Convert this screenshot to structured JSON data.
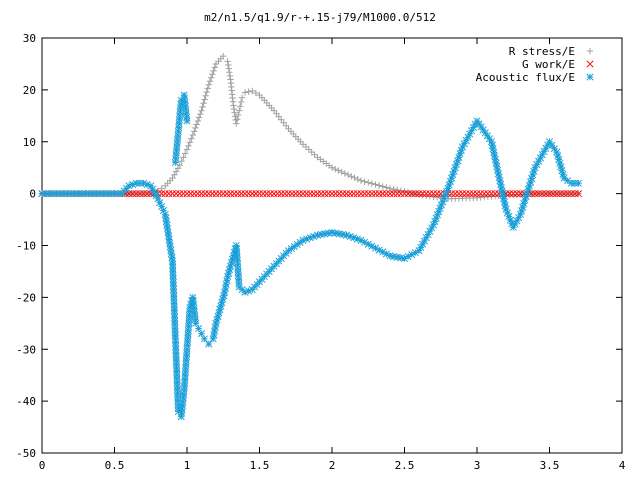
{
  "chart_data": {
    "type": "scatter",
    "title": "m2/n1.5/q1.9/r-+.15-j79/M1000.0/512",
    "xlabel": "",
    "ylabel": "",
    "xlim": [
      0,
      4
    ],
    "ylim": [
      -50,
      30
    ],
    "x_ticks": [
      "0",
      "0.5",
      "1",
      "1.5",
      "2",
      "2.5",
      "3",
      "3.5",
      "4"
    ],
    "y_ticks": [
      "30",
      "20",
      "10",
      "0",
      "-10",
      "-20",
      "-30",
      "-40",
      "-50"
    ],
    "grid": false,
    "legend_position": "top-right",
    "series": [
      {
        "name": "R stress/E",
        "marker": "+",
        "color": "#a0a0a0",
        "x": [
          0.0,
          0.5,
          0.6,
          0.7,
          0.75,
          0.8,
          0.85,
          0.9,
          0.95,
          1.0,
          1.05,
          1.1,
          1.15,
          1.2,
          1.25,
          1.28,
          1.3,
          1.32,
          1.34,
          1.36,
          1.38,
          1.4,
          1.45,
          1.5,
          1.6,
          1.7,
          1.8,
          1.9,
          2.0,
          2.2,
          2.4,
          2.6,
          2.8,
          3.0,
          3.2,
          3.4,
          3.6,
          3.7
        ],
        "y": [
          0.0,
          0.0,
          0.0,
          0.0,
          0.1,
          0.5,
          1.5,
          3.0,
          5.5,
          8.5,
          12.0,
          16.0,
          21.0,
          25.0,
          26.5,
          25.5,
          22.0,
          17.0,
          13.5,
          16.0,
          18.5,
          19.5,
          19.8,
          19.0,
          16.0,
          12.5,
          9.5,
          7.0,
          5.0,
          2.5,
          1.0,
          -0.2,
          -1.0,
          -0.8,
          -0.3,
          0.0,
          0.0,
          0.0
        ]
      },
      {
        "name": "G work/E",
        "marker": "x",
        "color": "#ff0000",
        "x": [
          0.0,
          0.25,
          0.5,
          0.75,
          1.0,
          1.25,
          1.5,
          1.75,
          2.0,
          2.25,
          2.5,
          2.75,
          3.0,
          3.25,
          3.5,
          3.7
        ],
        "y": [
          0,
          0,
          0,
          0,
          0,
          0,
          0,
          0,
          0,
          0,
          0,
          0,
          0,
          0,
          0,
          0
        ]
      },
      {
        "name": "Acoustic flux/E",
        "marker": "*",
        "color": "#1a9fd8",
        "x": [
          0.0,
          0.3,
          0.55,
          0.6,
          0.65,
          0.7,
          0.75,
          0.8,
          0.85,
          0.9,
          0.92,
          0.94,
          0.96,
          0.98,
          1.0,
          1.02,
          1.04,
          1.06,
          1.08,
          1.1,
          1.12,
          1.15,
          1.18,
          1.2,
          1.22,
          1.24,
          1.26,
          1.28,
          1.3,
          1.32,
          1.34,
          1.36,
          1.4,
          1.45,
          1.5,
          1.6,
          1.7,
          1.8,
          1.9,
          2.0,
          2.1,
          2.2,
          2.3,
          2.4,
          2.5,
          2.6,
          2.7,
          2.8,
          2.9,
          3.0,
          3.1,
          3.2,
          3.25,
          3.3,
          3.4,
          3.5,
          3.55,
          3.6,
          3.65,
          3.7
        ],
        "y": [
          0.0,
          0.0,
          0.0,
          1.5,
          2.0,
          2.0,
          1.5,
          -1.0,
          -4.0,
          -13.0,
          -28.0,
          -42.0,
          -43.0,
          -38.0,
          -30.0,
          -22.0,
          -20.0,
          -25.0,
          -26.0,
          -27.0,
          -28.0,
          -29.0,
          -28.0,
          -25.0,
          -23.0,
          -21.0,
          -19.0,
          -16.0,
          -14.0,
          -12.0,
          -10.0,
          -18.0,
          -19.0,
          -18.5,
          -17.0,
          -14.0,
          -11.0,
          -9.0,
          -8.0,
          -7.5,
          -8.0,
          -9.0,
          -10.5,
          -12.0,
          -12.5,
          -11.0,
          -6.0,
          1.0,
          9.0,
          14.0,
          10.0,
          -3.0,
          -6.5,
          -4.0,
          5.0,
          10.0,
          8.0,
          3.0,
          2.0,
          2.0
        ]
      },
      {
        "name": "Acoustic flux/E upper loop",
        "legend": false,
        "marker": "*",
        "color": "#1a9fd8",
        "x": [
          0.92,
          0.94,
          0.96,
          0.98,
          1.0
        ],
        "y": [
          6.0,
          12.0,
          18.0,
          19.0,
          14.0
        ]
      }
    ]
  }
}
